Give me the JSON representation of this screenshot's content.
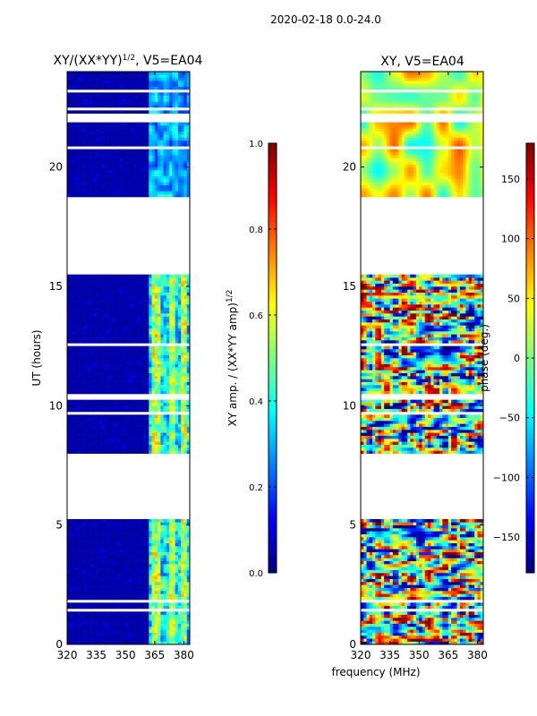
{
  "suptitle": "2020-02-18 0.0-24.0",
  "shared_xlabel": "frequency (MHz)",
  "colors": {
    "jet": [
      "#00007f",
      "#0000ff",
      "#007fff",
      "#00ffff",
      "#7fff7f",
      "#ffff00",
      "#ff7f00",
      "#ff0000",
      "#7f0000"
    ]
  },
  "chart_data": [
    {
      "type": "heatmap",
      "title": "XY/(XX*YY)",
      "title_sup": "1/2",
      "title_suffix": ", V5=EA04",
      "xlabel": "",
      "ylabel": "UT (hours)",
      "xlim": [
        320,
        383
      ],
      "ylim": [
        0,
        24
      ],
      "xticks": [
        "320",
        "335",
        "350",
        "365",
        "380"
      ],
      "xtick_values": [
        320,
        335,
        350,
        365,
        380
      ],
      "yticks": [
        "0",
        "5",
        "10",
        "15",
        "20"
      ],
      "ytick_values": [
        0,
        5,
        10,
        15,
        20
      ],
      "data_gaps_hours": [
        [
          0.72,
          0.78
        ],
        [
          1.35,
          1.45
        ],
        [
          1.72,
          1.82
        ],
        [
          2.45,
          2.55
        ],
        [
          5.3,
          8.0
        ],
        [
          9.6,
          9.7
        ],
        [
          10.3,
          10.5
        ],
        [
          12.5,
          12.6
        ],
        [
          15.5,
          18.8
        ],
        [
          20.7,
          20.9
        ],
        [
          21.9,
          22.2
        ],
        [
          22.4,
          22.5
        ],
        [
          23.1,
          23.3
        ]
      ],
      "colorbar": {
        "label": "XY amp. / (XX*YY amp)",
        "label_sup": "1/2",
        "range": [
          0.0,
          1.0
        ],
        "ticks": [
          "0.0",
          "0.2",
          "0.4",
          "0.6",
          "0.8",
          "1.0"
        ],
        "tick_values": [
          0.0,
          0.2,
          0.4,
          0.6,
          0.8,
          1.0
        ]
      }
    },
    {
      "type": "heatmap",
      "title": "XY, V5=EA04",
      "xlabel": "",
      "ylabel": "",
      "xlim": [
        320,
        383
      ],
      "ylim": [
        0,
        24
      ],
      "xticks": [
        "320",
        "335",
        "350",
        "365",
        "380"
      ],
      "xtick_values": [
        320,
        335,
        350,
        365,
        380
      ],
      "yticks": [
        "0",
        "5",
        "10",
        "15",
        "20"
      ],
      "ytick_values": [
        0,
        5,
        10,
        15,
        20
      ],
      "data_gaps_hours": [
        [
          0.72,
          0.78
        ],
        [
          1.35,
          1.45
        ],
        [
          1.72,
          1.82
        ],
        [
          2.45,
          2.55
        ],
        [
          5.3,
          8.0
        ],
        [
          9.6,
          9.7
        ],
        [
          10.3,
          10.5
        ],
        [
          12.5,
          12.6
        ],
        [
          15.5,
          18.8
        ],
        [
          20.7,
          20.9
        ],
        [
          21.9,
          22.2
        ],
        [
          22.4,
          22.5
        ],
        [
          23.1,
          23.3
        ]
      ],
      "colorbar": {
        "label": "phase (deg.)",
        "range": [
          -180,
          180
        ],
        "ticks": [
          "−150",
          "−100",
          "−50",
          "0",
          "50",
          "100",
          "150"
        ],
        "tick_values": [
          -150,
          -100,
          -50,
          0,
          50,
          100,
          150
        ]
      }
    }
  ]
}
